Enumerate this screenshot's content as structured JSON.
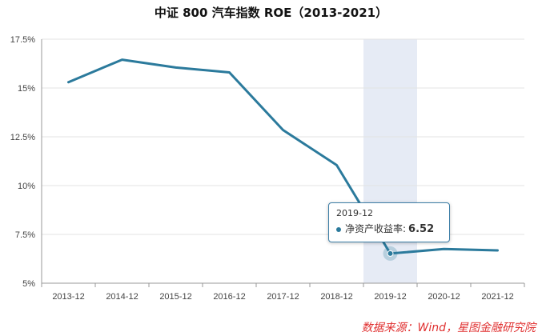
{
  "chart_data": {
    "type": "line",
    "title": "中证 800 汽车指数 ROE（2013-2021）",
    "categories": [
      "2013-12",
      "2014-12",
      "2015-12",
      "2016-12",
      "2017-12",
      "2018-12",
      "2019-12",
      "2020-12",
      "2021-12"
    ],
    "series": [
      {
        "name": "净资产收益率",
        "values": [
          15.3,
          16.45,
          16.05,
          15.8,
          12.85,
          11.05,
          6.52,
          6.75,
          6.68
        ]
      }
    ],
    "y_ticks": [
      "5%",
      "7.5%",
      "10%",
      "12.5%",
      "15%",
      "17.5%"
    ],
    "ylim": [
      5,
      17.5
    ],
    "grid": true,
    "highlight_category": "2019-12",
    "tooltip": {
      "date": "2019-12",
      "label": "净资产收益率:",
      "value": "6.52"
    },
    "colors": {
      "line": "#2b7a9c",
      "highlight_band": "#e6ebf5",
      "tooltip_border": "#3c7ea6"
    },
    "source": "数据来源：Wind，星图金融研究院"
  }
}
